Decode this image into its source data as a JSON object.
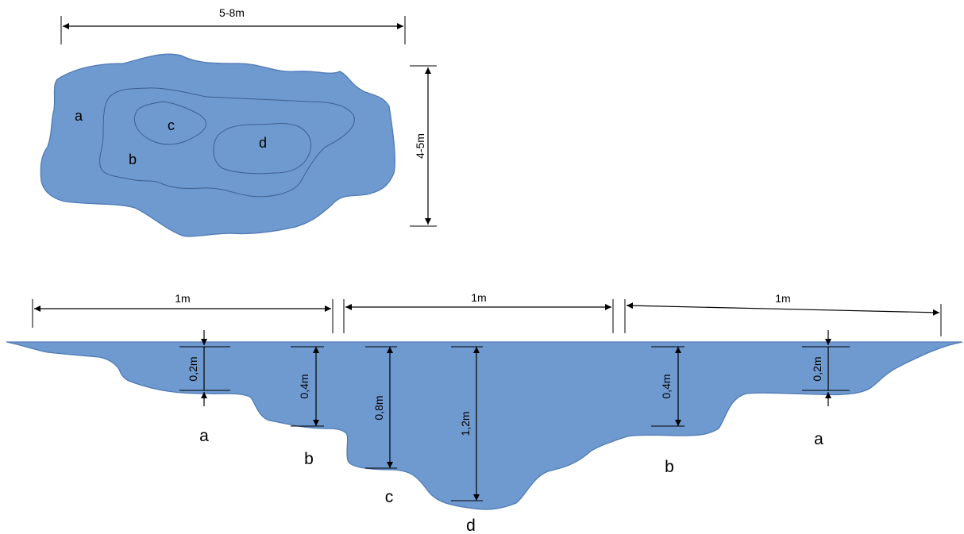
{
  "plan_view": {
    "width_label": "5-8m",
    "height_label": "4-5m",
    "zones": [
      "a",
      "b",
      "c",
      "d"
    ]
  },
  "cross_section": {
    "segment_labels": [
      "1m",
      "1m",
      "1m"
    ],
    "depths": [
      {
        "label": "0,2m",
        "zone": "a"
      },
      {
        "label": "0,4m",
        "zone": "b"
      },
      {
        "label": "0,8m",
        "zone": "c"
      },
      {
        "label": "1,2m",
        "zone": "d"
      },
      {
        "label": "0,4m",
        "zone": "b"
      },
      {
        "label": "0,2m",
        "zone": "a"
      }
    ]
  },
  "colors": {
    "water": "#6f9ad0",
    "outline": "#4f7ab4",
    "contour": "#3d5f8e"
  }
}
